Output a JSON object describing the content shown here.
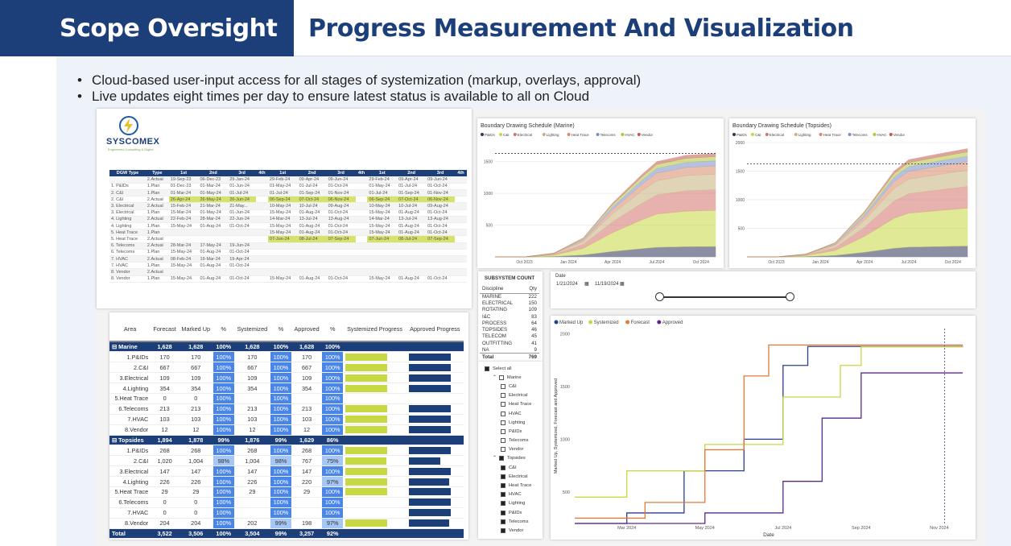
{
  "header": {
    "left_title": "Scope Oversight",
    "right_title": "Progress Measurement And Visualization"
  },
  "bullets": [
    "Cloud-based user-input access for all stages of systemization (markup, overlays, approval)",
    "Live updates eight times per day to ensure latest status is available to all on Cloud"
  ],
  "logo": {
    "name": "SYSCOMEX",
    "tagline": "Engineered Consulting & Digital"
  },
  "dgw_table": {
    "headers": [
      "DGW Type",
      "Type",
      "1st",
      "2nd",
      "3rd",
      "4th",
      "1st",
      "2nd",
      "3rd",
      "4th",
      "1st",
      "2nd",
      "3rd",
      "4th"
    ],
    "rows": [
      [
        "1. P&IDs",
        "2.Actual",
        "19-Sep-23",
        "06-Dec-23",
        "29-Jan-24",
        "",
        "29-Feb-24",
        "09-Apr-24",
        "09-Jun-24",
        "",
        "29-Feb-24",
        "09-Apr-24",
        "09-Jun-24",
        ""
      ],
      [
        "1. P&IDs",
        "1.Plan",
        "01-Dec-23",
        "01-Mar-24",
        "01-Jun-24",
        "",
        "01-May-24",
        "01-Jul-24",
        "01-Oct-24",
        "",
        "01-May-24",
        "01-Jul-24",
        "01-Oct-24",
        ""
      ],
      [
        "2. C&I",
        "1.Plan",
        "01-Mar-24",
        "01-May-24",
        "01-Jul-24",
        "",
        "01-Jul-24",
        "01-Sep-24",
        "01-Nov-24",
        "",
        "01-Jul-24",
        "01-Sep-24",
        "01-Nov-24",
        ""
      ],
      [
        "2. C&I",
        "2.Actual",
        "26-Apr-24",
        "26-May-24",
        "26-Jun-24",
        "",
        "06-Sep-24",
        "07-Oct-24",
        "06-Nov-24",
        "",
        "06-Sep-24",
        "07-Oct-24",
        "06-Nov-24",
        ""
      ],
      [
        "3. Electrical",
        "2.Actual",
        "15-Feb-24",
        "21-Mar-24",
        "21-May...",
        "",
        "10-May-24",
        "10-Jul-24",
        "09-Aug-24",
        "",
        "10-May-24",
        "10-Jul-24",
        "09-Aug-24",
        ""
      ],
      [
        "3. Electrical",
        "1.Plan",
        "15-Mar-24",
        "01-May-24",
        "01-Jun-24",
        "",
        "15-May-24",
        "01-Aug-24",
        "01-Oct-24",
        "",
        "15-May-24",
        "01-Aug-24",
        "01-Oct-24",
        ""
      ],
      [
        "4. Lighting",
        "2.Actual",
        "22-Feb-24",
        "28-Mar-24",
        "22-Jun-24",
        "",
        "14-Mar-24",
        "13-Jul-24",
        "13-Aug-24",
        "",
        "14-Mar-24",
        "13-Jul-24",
        "13-Aug-24",
        ""
      ],
      [
        "4. Lighting",
        "1.Plan",
        "15-May-24",
        "01-Aug-24",
        "01-Oct-24",
        "",
        "15-May-24",
        "01-Aug-24",
        "01-Oct-24",
        "",
        "15-May-24",
        "01-Aug-24",
        "01-Oct-24",
        ""
      ],
      [
        "5. Heat Trace",
        "1.Plan",
        "",
        "",
        "",
        "",
        "15-May-24",
        "01-Aug-24",
        "01-Oct-24",
        "",
        "15-May-24",
        "01-Aug-24",
        "01-Oct-24",
        ""
      ],
      [
        "5. Heat Trace",
        "2.Actual",
        "",
        "",
        "",
        "",
        "07-Jun-24",
        "08-Jul-24",
        "07-Sep-24",
        "",
        "07-Jun-24",
        "08-Jul-24",
        "07-Sep-24",
        ""
      ],
      [
        "6. Telecoms",
        "2.Actual",
        "28-Mar-24",
        "17-May-24",
        "19-Jun-24",
        "",
        "",
        "",
        "",
        "",
        "",
        "",
        "",
        ""
      ],
      [
        "6. Telecoms",
        "1.Plan",
        "15-May-24",
        "01-Aug-24",
        "01-Oct-24",
        "",
        "",
        "",
        "",
        "",
        "",
        "",
        "",
        ""
      ],
      [
        "7. HVAC",
        "2.Actual",
        "08-Feb-24",
        "19-Mar-24",
        "19-Apr-24",
        "",
        "",
        "",
        "",
        "",
        "",
        "",
        "",
        ""
      ],
      [
        "7. HVAC",
        "1.Plan",
        "15-May-24",
        "01-Aug-24",
        "01-Oct-24",
        "",
        "",
        "",
        "",
        "",
        "",
        "",
        "",
        ""
      ],
      [
        "8. Vendor",
        "2.Actual",
        "",
        "",
        "",
        "",
        "",
        "",
        "",
        "",
        "",
        "",
        "",
        ""
      ],
      [
        "8. Vendor",
        "1.Plan",
        "15-May-24",
        "01-Aug-24",
        "01-Oct-24",
        "",
        "15-May-24",
        "01-Aug-24",
        "01-Oct-24",
        "",
        "15-May-24",
        "01-Aug-24",
        "01-Oct-24",
        ""
      ]
    ]
  },
  "area_table": {
    "headers": [
      "Area",
      "Forecast",
      "Marked Up",
      "%",
      "Systemized",
      "%",
      "Approved",
      "%",
      "Systemized Progress",
      "Approved Progress"
    ],
    "rows": [
      {
        "g": 1,
        "c": [
          "⊟  Marine",
          "1,628",
          "1,628",
          "100%",
          "1,628",
          "100%",
          "1,628",
          "100%"
        ],
        "s": 1.0,
        "a": 1.0
      },
      {
        "c": [
          "1.P&IDs",
          "170",
          "170",
          "100%",
          "170",
          "100%",
          "170",
          "100%"
        ],
        "s": 1.0,
        "a": 1.0
      },
      {
        "c": [
          "2.C&I",
          "667",
          "667",
          "100%",
          "667",
          "100%",
          "667",
          "100%"
        ],
        "s": 1.0,
        "a": 1.0
      },
      {
        "c": [
          "3.Electrical",
          "109",
          "109",
          "100%",
          "109",
          "100%",
          "109",
          "100%"
        ],
        "s": 1.0,
        "a": 1.0
      },
      {
        "c": [
          "4.Lighting",
          "354",
          "354",
          "100%",
          "354",
          "100%",
          "354",
          "100%"
        ],
        "s": 1.0,
        "a": 1.0
      },
      {
        "c": [
          "5.Heat Trace",
          "0",
          "0",
          "100%",
          "",
          "100%",
          "",
          "100%"
        ],
        "s": 0,
        "a": 0
      },
      {
        "c": [
          "6.Telecoms",
          "213",
          "213",
          "100%",
          "213",
          "100%",
          "213",
          "100%"
        ],
        "s": 1.0,
        "a": 1.0
      },
      {
        "c": [
          "7.HVAC",
          "103",
          "103",
          "100%",
          "103",
          "100%",
          "103",
          "100%"
        ],
        "s": 1.0,
        "a": 1.0
      },
      {
        "c": [
          "8.Vendor",
          "12",
          "12",
          "100%",
          "12",
          "100%",
          "12",
          "100%"
        ],
        "s": 1.0,
        "a": 1.0
      },
      {
        "g": 1,
        "c": [
          "⊟  Topsides",
          "1,894",
          "1,878",
          "99%",
          "1,876",
          "99%",
          "1,629",
          "86%"
        ],
        "s": 0.99,
        "a": 0.86
      },
      {
        "c": [
          "1.P&IDs",
          "268",
          "268",
          "100%",
          "268",
          "100%",
          "268",
          "100%"
        ],
        "s": 1.0,
        "a": 1.0
      },
      {
        "c": [
          "2.C&I",
          "1,020",
          "1,004",
          "98%",
          "1,004",
          "98%",
          "767",
          "75%"
        ],
        "s": 0.98,
        "a": 0.75
      },
      {
        "c": [
          "3.Electrical",
          "147",
          "147",
          "100%",
          "147",
          "100%",
          "147",
          "100%"
        ],
        "s": 1.0,
        "a": 1.0
      },
      {
        "c": [
          "4.Lighting",
          "226",
          "226",
          "100%",
          "226",
          "100%",
          "220",
          "97%"
        ],
        "s": 1.0,
        "a": 0.97
      },
      {
        "c": [
          "5.Heat Trace",
          "29",
          "29",
          "100%",
          "29",
          "100%",
          "29",
          "100%"
        ],
        "s": 1.0,
        "a": 1.0
      },
      {
        "c": [
          "6.Telecoms",
          "0",
          "0",
          "100%",
          "",
          "100%",
          "",
          "100%"
        ],
        "s": 0,
        "a": 1.0
      },
      {
        "c": [
          "7.HVAC",
          "0",
          "0",
          "100%",
          "",
          "100%",
          "",
          "100%"
        ],
        "s": 0,
        "a": 1.0
      },
      {
        "c": [
          "8.Vendor",
          "204",
          "204",
          "100%",
          "202",
          "99%",
          "198",
          "97%"
        ],
        "s": 0.99,
        "a": 0.97
      },
      {
        "t": 1,
        "c": [
          "Total",
          "3,522",
          "3,506",
          "100%",
          "3,504",
          "99%",
          "3,257",
          "92%"
        ],
        "s": 0,
        "a": 0
      }
    ]
  },
  "subsystem": {
    "title": "SUBSYSTEM COUNT",
    "h1": "Discipline",
    "h2": "Qty",
    "rows": [
      [
        "MARINE",
        "222"
      ],
      [
        "ELECTRICAL",
        "150"
      ],
      [
        "ROTATING",
        "109"
      ],
      [
        "I&C",
        "83"
      ],
      [
        "PROCESS",
        "64"
      ],
      [
        "TOPSIDES",
        "46"
      ],
      [
        "TELECOM",
        "45"
      ],
      [
        "OUTFITTING",
        "41"
      ],
      [
        "NA",
        "9"
      ],
      [
        "Total",
        "769"
      ]
    ]
  },
  "slicer": [
    {
      "l": "Select all",
      "d": 0,
      "on": 1
    },
    {
      "l": "Marine",
      "d": 1,
      "on": 0,
      "e": 1
    },
    {
      "l": "C&I",
      "d": 2,
      "on": 0
    },
    {
      "l": "Electrical",
      "d": 2,
      "on": 0
    },
    {
      "l": "Heat Trace",
      "d": 2,
      "on": 0
    },
    {
      "l": "HVAC",
      "d": 2,
      "on": 0
    },
    {
      "l": "Lighting",
      "d": 2,
      "on": 0
    },
    {
      "l": "P&IDs",
      "d": 2,
      "on": 0
    },
    {
      "l": "Telecoms",
      "d": 2,
      "on": 0
    },
    {
      "l": "Vendor",
      "d": 2,
      "on": 0
    },
    {
      "l": "Topsides",
      "d": 1,
      "on": 1,
      "e": 1
    },
    {
      "l": "C&I",
      "d": 2,
      "on": 1
    },
    {
      "l": "Electrical",
      "d": 2,
      "on": 1
    },
    {
      "l": "Heat Trace",
      "d": 2,
      "on": 1
    },
    {
      "l": "HVAC",
      "d": 2,
      "on": 1
    },
    {
      "l": "Lighting",
      "d": 2,
      "on": 1
    },
    {
      "l": "P&IDs",
      "d": 2,
      "on": 1
    },
    {
      "l": "Telecoms",
      "d": 2,
      "on": 1
    },
    {
      "l": "Vendor",
      "d": 2,
      "on": 1
    }
  ],
  "date_filter": {
    "label": "Date",
    "start": "1/21/2024",
    "end": "11/19/2024"
  },
  "chart_data": [
    {
      "type": "area",
      "title": "Boundary Drawing Schedule (Marine)",
      "legend": [
        "P&IDs",
        "C&I",
        "Electrical",
        "Lighting",
        "Heat Trace",
        "Telecoms",
        "HVAC",
        "Vendor"
      ],
      "colors": [
        "#30355a",
        "#c6d842",
        "#d4736c",
        "#c5b37b",
        "#d98a6a",
        "#7a90c9",
        "#b6c43d",
        "#c25a4e"
      ],
      "x_ticks": [
        "Oct 2023",
        "Jan 2024",
        "Apr 2024",
        "Jul 2024",
        "Oct 2024"
      ],
      "ylim": [
        0,
        1800
      ],
      "y_ticks": [
        500,
        1000,
        1500
      ],
      "x": [
        "2023-08",
        "2023-10",
        "2023-12",
        "2024-02",
        "2024-04",
        "2024-06",
        "2024-07",
        "2024-09",
        "2024-11"
      ],
      "cumulative_total": [
        0,
        0,
        60,
        300,
        850,
        1300,
        1500,
        1600,
        1628
      ],
      "target_line": 1628
    },
    {
      "type": "area",
      "title": "Boundary Drawing Schedule (Topsides)",
      "legend": [
        "P&IDs",
        "C&I",
        "Electrical",
        "Lighting",
        "Heat Trace",
        "Telecoms",
        "HVAC",
        "Vendor"
      ],
      "colors": [
        "#30355a",
        "#c6d842",
        "#d4736c",
        "#c5b37b",
        "#d98a6a",
        "#7a90c9",
        "#b6c43d",
        "#c25a4e"
      ],
      "x_ticks": [
        "Oct 2023",
        "Jan 2024",
        "Apr 2024",
        "Jul 2024",
        "Oct 2024"
      ],
      "ylim": [
        0,
        2000
      ],
      "y_ticks": [
        500,
        1000,
        1500,
        2000
      ],
      "x": [
        "2023-08",
        "2023-10",
        "2023-12",
        "2024-02",
        "2024-04",
        "2024-06",
        "2024-07",
        "2024-09",
        "2024-11"
      ],
      "cumulative_total": [
        0,
        0,
        50,
        250,
        800,
        1500,
        1700,
        1800,
        1894
      ],
      "target_line": 1629
    },
    {
      "type": "line",
      "xlabel": "Date",
      "ylabel": "Marked Up, Systemized, Forecast and Approved",
      "legend": [
        "Marked Up",
        "Systemized",
        "Forecast",
        "Approved"
      ],
      "colors": [
        "#2b3f8c",
        "#c6d842",
        "#e07a3b",
        "#5a2a8a"
      ],
      "x_ticks": [
        "Mar 2024",
        "May 2024",
        "Jul 2024",
        "Sep 2024",
        "Nov 2024"
      ],
      "y_ticks": [
        500,
        1000,
        1500,
        2000
      ],
      "ylim": [
        200,
        2050
      ],
      "series": [
        {
          "name": "Marked Up",
          "x": [
            "2024-01-21",
            "2024-03-01",
            "2024-04-15",
            "2024-06-01",
            "2024-07-01",
            "2024-07-20",
            "2024-11-19"
          ],
          "y": [
            200,
            300,
            700,
            1000,
            1700,
            1880,
            1878
          ]
        },
        {
          "name": "Systemized",
          "x": [
            "2024-01-21",
            "2024-03-01",
            "2024-05-01",
            "2024-07-01",
            "2024-08-15",
            "2024-09-01",
            "2024-11-19"
          ],
          "y": [
            450,
            700,
            950,
            1400,
            1700,
            1876,
            1876
          ]
        },
        {
          "name": "Forecast",
          "x": [
            "2024-01-21",
            "2024-03-15",
            "2024-05-01",
            "2024-06-01",
            "2024-06-20",
            "2024-11-19"
          ],
          "y": [
            250,
            400,
            900,
            1600,
            1894,
            1894
          ]
        },
        {
          "name": "Approved",
          "x": [
            "2024-01-21",
            "2024-05-01",
            "2024-07-01",
            "2024-08-01",
            "2024-09-01",
            "2024-11-19"
          ],
          "y": [
            200,
            300,
            600,
            1200,
            1629,
            1629
          ]
        }
      ]
    }
  ]
}
